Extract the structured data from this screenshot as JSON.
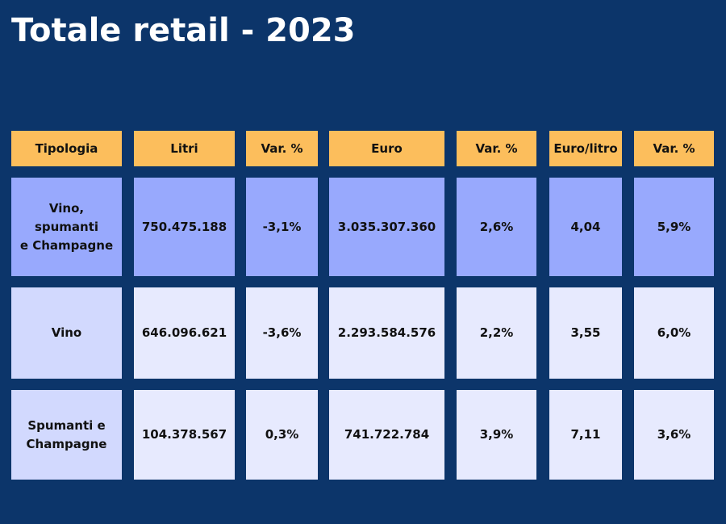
{
  "title": "Totale retail - 2023",
  "table": {
    "headers": [
      "Tipologia",
      "Litri",
      "Var. %",
      "Euro",
      "Var. %",
      "Euro/litro",
      "Var. %"
    ],
    "rows": [
      [
        "Vino,\nspumanti\ne Champagne",
        "750.475.188",
        "-3,1%",
        "3.035.307.360",
        "2,6%",
        "4,04",
        "5,9%"
      ],
      [
        "Vino",
        "646.096.621",
        "-3,6%",
        "2.293.584.576",
        "2,2%",
        "3,55",
        "6,0%"
      ],
      [
        "Spumanti e\nChampagne",
        "104.378.567",
        "0,3%",
        "741.722.784",
        "3,9%",
        "7,11",
        "3,6%"
      ]
    ]
  },
  "colors": {
    "background": "#0c356a",
    "header": "#fcbe5c",
    "total_row": "#98a9fd",
    "row_label": "#d2d9fe",
    "row_cell": "#e7eafe"
  }
}
